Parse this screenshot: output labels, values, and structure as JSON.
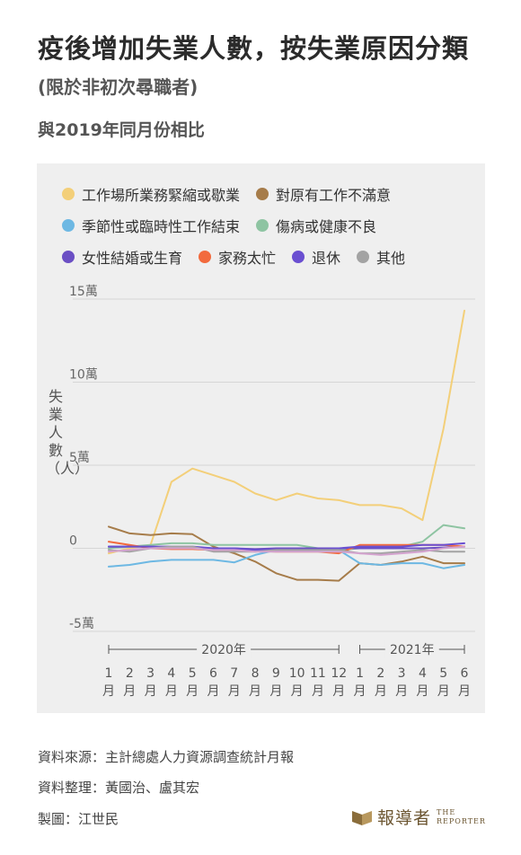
{
  "header": {
    "title": "疫後增加失業人數，按失業原因分類",
    "title_note": "(限於非初次尋職者)",
    "subtitle": "與2019年同月份相比"
  },
  "chart_data": {
    "type": "line",
    "ylabel": "失業人數（人）",
    "ylim": [
      -50000,
      150000
    ],
    "y_ticks": [
      {
        "value": 150000,
        "label": "15萬"
      },
      {
        "value": 100000,
        "label": "10萬"
      },
      {
        "value": 50000,
        "label": "5萬"
      },
      {
        "value": 0,
        "label": "0"
      },
      {
        "value": -50000,
        "label": "-5萬"
      }
    ],
    "x_year_groups": [
      {
        "label": "2020年",
        "start": 0,
        "end": 11
      },
      {
        "label": "2021年",
        "start": 12,
        "end": 17
      }
    ],
    "categories": [
      "1月",
      "2月",
      "3月",
      "4月",
      "5月",
      "6月",
      "7月",
      "8月",
      "9月",
      "10月",
      "11月",
      "12月",
      "1月",
      "2月",
      "3月",
      "4月",
      "5月",
      "6月"
    ],
    "series": [
      {
        "name": "工作場所業務緊縮或歇業",
        "color": "#f3cf79",
        "values": [
          -3000,
          0,
          2000,
          40000,
          48000,
          44000,
          40000,
          33000,
          29000,
          33000,
          30000,
          29000,
          26000,
          26000,
          24000,
          17000,
          72000,
          143000
        ]
      },
      {
        "name": "對原有工作不滿意",
        "color": "#a67c4a",
        "values": [
          13000,
          9000,
          8000,
          9000,
          8500,
          1000,
          -3000,
          -8000,
          -15000,
          -19000,
          -19000,
          -19500,
          -9000,
          -10000,
          -8000,
          -5000,
          -9000,
          -9000
        ]
      },
      {
        "name": "季節性或臨時性工作結束",
        "color": "#6db8e3",
        "values": [
          -11000,
          -10000,
          -8000,
          -7000,
          -7000,
          -7000,
          -8500,
          -4000,
          -1000,
          -1000,
          -1000,
          -1000,
          -9000,
          -10000,
          -9000,
          -9000,
          -12000,
          -10000
        ]
      },
      {
        "name": "傷病或健康不良",
        "color": "#8ec4a2",
        "values": [
          0,
          1000,
          2000,
          3000,
          3000,
          2000,
          2000,
          2000,
          2000,
          2000,
          0,
          -1000,
          0,
          0,
          1000,
          4000,
          14000,
          12000
        ]
      },
      {
        "name": "女性結婚或生育",
        "color": "#6b4fc4",
        "values": [
          1000,
          1000,
          1000,
          500,
          500,
          0,
          0,
          -500,
          0,
          0,
          0,
          0,
          0,
          0,
          0,
          0,
          500,
          1000
        ]
      },
      {
        "name": "家務太忙",
        "color": "#f26a3d",
        "values": [
          4000,
          2000,
          0,
          -500,
          -500,
          -1000,
          -1000,
          -1500,
          -2000,
          -2000,
          -2000,
          -3000,
          2000,
          2000,
          2000,
          2000,
          2000,
          1000
        ]
      },
      {
        "name": "退休",
        "color": "#6a4fd1",
        "values": [
          1000,
          1000,
          1000,
          1000,
          1000,
          0,
          0,
          -1000,
          -1000,
          -1000,
          -1000,
          0,
          1000,
          1000,
          1000,
          2000,
          2000,
          3000
        ]
      },
      {
        "name": "其他",
        "color": "#a3a3a3",
        "values": [
          -1000,
          -2000,
          0,
          1000,
          1000,
          -2000,
          -2000,
          -2000,
          -1000,
          -1000,
          -1000,
          -1000,
          -3000,
          -3000,
          -2000,
          -1000,
          -2000,
          -2000
        ]
      }
    ],
    "overlay_series": [
      {
        "color": "#d4a3cf",
        "values": [
          -2000,
          -1000,
          0,
          0,
          0,
          -1000,
          -1000,
          -2000,
          -2000,
          -2000,
          -2000,
          -2000,
          -3000,
          -4000,
          -3000,
          -2000,
          0,
          1000
        ]
      }
    ],
    "grid": true,
    "legend_position": "top"
  },
  "footer": {
    "source": "資料來源：主計總處人力資源調查統計月報",
    "compiled": "資料整理：黃國治、盧其宏",
    "author": "製圖：江世民"
  },
  "logo": {
    "name": "報導者",
    "en_line1": "THE",
    "en_line2": "REPORTER",
    "color": "#6b5530"
  }
}
